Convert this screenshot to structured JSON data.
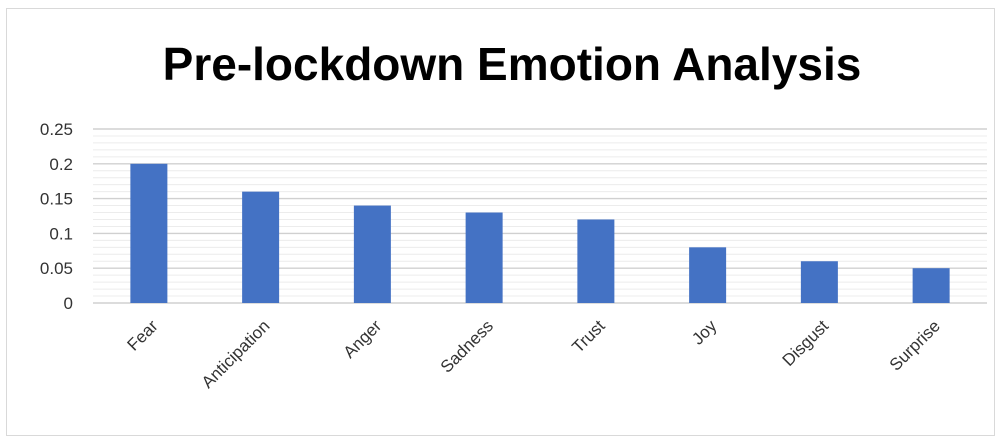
{
  "chart_data": {
    "type": "bar",
    "title": "Pre-lockdown Emotion Analysis",
    "categories": [
      "Fear",
      "Anticipation",
      "Anger",
      "Sadness",
      "Trust",
      "Joy",
      "Disgust",
      "Surprise"
    ],
    "values": [
      0.2,
      0.16,
      0.14,
      0.13,
      0.12,
      0.08,
      0.06,
      0.05
    ],
    "ylim": [
      0,
      0.25
    ],
    "yticks": [
      "0",
      "0.05",
      "0.1",
      "0.15",
      "0.2",
      "0.25"
    ],
    "xlabel": "",
    "ylabel": "",
    "grid": true,
    "bar_color": "#4472c4",
    "grid_color": "#d9d9d9"
  }
}
